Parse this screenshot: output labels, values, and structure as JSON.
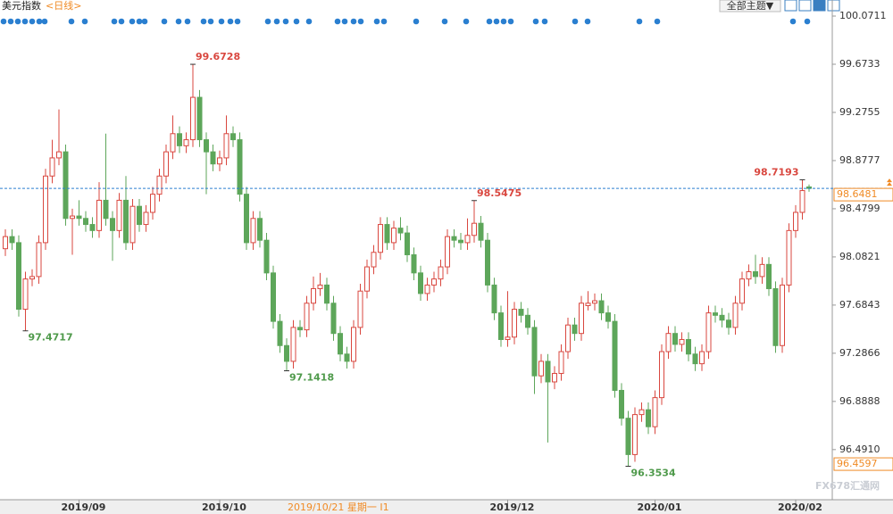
{
  "header": {
    "title": "美元指数",
    "period": "<日线>",
    "theme_button": "全部主题▼"
  },
  "chart_data": {
    "type": "candlestick",
    "categories": [
      null,
      null,
      null,
      null,
      null,
      null,
      null,
      null,
      null,
      null,
      null,
      "2019/09",
      null,
      null,
      null,
      null,
      null,
      null,
      null,
      null,
      null,
      null,
      null,
      null,
      null,
      null,
      null,
      null,
      null,
      null,
      null,
      null,
      "2019/10",
      null,
      null,
      null,
      null,
      null,
      null,
      null,
      null,
      null,
      null,
      null,
      null,
      null,
      null,
      null,
      null,
      null,
      null,
      null,
      null,
      null,
      null,
      null,
      null,
      null,
      null,
      null,
      null,
      null,
      null,
      null,
      null,
      null,
      null,
      null,
      null,
      null,
      null,
      null,
      null,
      null,
      null,
      "2019/12",
      null,
      null,
      null,
      null,
      null,
      null,
      null,
      null,
      null,
      null,
      null,
      null,
      null,
      null,
      null,
      null,
      null,
      null,
      null,
      null,
      null,
      "2020/01",
      null,
      null,
      null,
      null,
      null,
      null,
      null,
      null,
      null,
      null,
      null,
      null,
      null,
      null,
      null,
      null,
      null,
      null,
      null,
      null,
      "2020/02",
      null,
      null
    ],
    "open": [
      98.15,
      98.25,
      98.2,
      97.65,
      97.9,
      97.92,
      98.2,
      98.75,
      98.9,
      98.95,
      98.4,
      98.42,
      98.4,
      98.35,
      98.3,
      98.55,
      98.4,
      98.3,
      98.55,
      98.2,
      98.5,
      98.35,
      98.45,
      98.6,
      98.75,
      98.95,
      99.1,
      99.0,
      99.05,
      99.4,
      99.05,
      98.95,
      98.85,
      98.9,
      99.1,
      99.05,
      98.6,
      98.2,
      98.4,
      98.22,
      97.95,
      97.55,
      97.35,
      97.22,
      97.5,
      97.48,
      97.7,
      97.82,
      97.85,
      97.7,
      97.45,
      97.28,
      97.22,
      97.5,
      97.8,
      98.0,
      98.12,
      98.35,
      98.2,
      98.32,
      98.28,
      98.1,
      97.95,
      97.78,
      97.85,
      97.9,
      98.0,
      98.25,
      98.22,
      98.2,
      98.26,
      98.36,
      98.22,
      97.85,
      97.62,
      97.4,
      97.42,
      97.65,
      97.6,
      97.5,
      97.1,
      97.22,
      97.05,
      97.12,
      97.3,
      97.52,
      97.45,
      97.68,
      97.7,
      97.72,
      97.62,
      97.55,
      96.98,
      96.75,
      96.45,
      96.78,
      96.82,
      96.68,
      96.92,
      97.3,
      97.45,
      97.36,
      97.4,
      97.28,
      97.2,
      97.3,
      97.62,
      97.6,
      97.56,
      97.5,
      97.7,
      97.9,
      97.96,
      97.92,
      98.02,
      97.82,
      97.35,
      97.85,
      98.3,
      98.45,
      98.66
    ],
    "high": [
      98.31,
      98.31,
      98.26,
      97.96,
      97.98,
      98.26,
      98.81,
      99.05,
      99.3,
      99.01,
      98.48,
      98.55,
      98.46,
      98.41,
      98.7,
      99.1,
      98.46,
      98.61,
      98.75,
      98.56,
      98.56,
      98.51,
      98.66,
      98.81,
      99.01,
      99.25,
      99.16,
      99.11,
      99.6728,
      99.46,
      99.11,
      99.01,
      98.96,
      99.25,
      99.16,
      99.11,
      98.66,
      98.46,
      98.46,
      98.28,
      98.01,
      97.61,
      97.41,
      97.56,
      97.56,
      97.76,
      97.92,
      97.95,
      97.91,
      97.76,
      97.51,
      97.34,
      97.56,
      97.86,
      98.06,
      98.18,
      98.41,
      98.41,
      98.38,
      98.41,
      98.34,
      98.16,
      98.01,
      97.91,
      97.96,
      98.06,
      98.31,
      98.31,
      98.28,
      98.4,
      98.5475,
      98.42,
      98.28,
      97.91,
      97.68,
      97.8,
      97.71,
      97.71,
      97.66,
      97.56,
      97.28,
      97.28,
      97.18,
      97.36,
      97.58,
      97.58,
      97.76,
      97.8,
      97.78,
      97.78,
      97.68,
      97.61,
      97.04,
      96.81,
      96.84,
      96.88,
      96.88,
      96.98,
      97.36,
      97.51,
      97.51,
      97.46,
      97.46,
      97.34,
      97.36,
      97.68,
      97.68,
      97.66,
      97.62,
      97.76,
      97.96,
      98.02,
      98.1,
      98.08,
      98.08,
      97.88,
      97.91,
      98.36,
      98.51,
      98.7193,
      98.68
    ],
    "low": [
      98.09,
      98.14,
      97.59,
      97.4717,
      97.84,
      97.86,
      98.14,
      98.69,
      98.84,
      98.34,
      98.1,
      98.34,
      98.29,
      98.24,
      98.24,
      98.34,
      98.05,
      98.24,
      98.14,
      98.14,
      98.29,
      98.29,
      98.39,
      98.54,
      98.69,
      98.89,
      98.94,
      98.94,
      98.99,
      98.99,
      98.6,
      98.79,
      98.79,
      98.84,
      98.99,
      98.54,
      98.14,
      98.14,
      98.16,
      97.89,
      97.49,
      97.29,
      97.1418,
      97.16,
      97.42,
      97.42,
      97.64,
      97.76,
      97.64,
      97.39,
      97.22,
      97.16,
      97.16,
      97.44,
      97.74,
      97.94,
      98.06,
      98.14,
      98.14,
      98.22,
      98.04,
      97.89,
      97.72,
      97.72,
      97.79,
      97.84,
      97.94,
      98.16,
      98.14,
      98.14,
      98.2,
      98.16,
      97.79,
      97.56,
      97.34,
      97.34,
      97.36,
      97.54,
      97.44,
      96.95,
      97.04,
      96.55,
      96.99,
      97.06,
      97.24,
      97.39,
      97.39,
      97.64,
      97.64,
      97.56,
      97.49,
      96.92,
      96.69,
      96.3534,
      96.39,
      96.72,
      96.62,
      96.62,
      96.86,
      97.24,
      97.3,
      97.3,
      97.22,
      97.14,
      97.14,
      97.24,
      97.54,
      97.5,
      97.44,
      97.44,
      97.64,
      97.84,
      97.86,
      97.86,
      97.76,
      97.29,
      97.29,
      97.79,
      98.24,
      98.39,
      98.62
    ],
    "close": [
      98.25,
      98.2,
      97.65,
      97.9,
      97.92,
      98.2,
      98.75,
      98.9,
      98.95,
      98.4,
      98.42,
      98.4,
      98.35,
      98.3,
      98.55,
      98.4,
      98.3,
      98.55,
      98.2,
      98.5,
      98.35,
      98.45,
      98.6,
      98.75,
      98.95,
      99.1,
      99.0,
      99.05,
      99.4,
      99.05,
      98.95,
      98.85,
      98.9,
      99.1,
      99.05,
      98.6,
      98.2,
      98.4,
      98.22,
      97.95,
      97.55,
      97.35,
      97.22,
      97.5,
      97.48,
      97.7,
      97.82,
      97.85,
      97.7,
      97.45,
      97.28,
      97.22,
      97.5,
      97.8,
      98.0,
      98.12,
      98.35,
      98.2,
      98.32,
      98.28,
      98.1,
      97.95,
      97.78,
      97.85,
      97.9,
      98.0,
      98.25,
      98.22,
      98.2,
      98.26,
      98.36,
      98.22,
      97.85,
      97.62,
      97.4,
      97.42,
      97.65,
      97.6,
      97.5,
      97.1,
      97.22,
      97.05,
      97.12,
      97.3,
      97.52,
      97.45,
      97.7,
      97.7,
      97.72,
      97.62,
      97.55,
      96.98,
      96.75,
      96.45,
      96.78,
      96.82,
      96.68,
      96.92,
      97.3,
      97.45,
      97.36,
      97.4,
      97.28,
      97.2,
      97.3,
      97.62,
      97.6,
      97.56,
      97.5,
      97.7,
      97.9,
      97.96,
      97.92,
      98.02,
      97.82,
      97.35,
      97.85,
      98.3,
      98.45,
      98.63,
      98.6481
    ],
    "up_color": "#d9473f",
    "down_color": "#5da65a",
    "ylim": [
      96.077,
      100.108
    ],
    "yticks": [
      100.0711,
      99.6733,
      99.2755,
      98.8777,
      98.4799,
      98.0821,
      97.6843,
      97.2866,
      96.8888,
      {
        "value": 96.491,
        "label": "96.4910"
      }
    ],
    "annotated_highs": [
      28,
      70,
      119
    ],
    "annotated_lows": [
      3,
      42,
      93
    ],
    "reference_level": 96.4597,
    "cursor_date": "2019/10/21 星期一 I1",
    "watermark": "FX678汇通网"
  }
}
